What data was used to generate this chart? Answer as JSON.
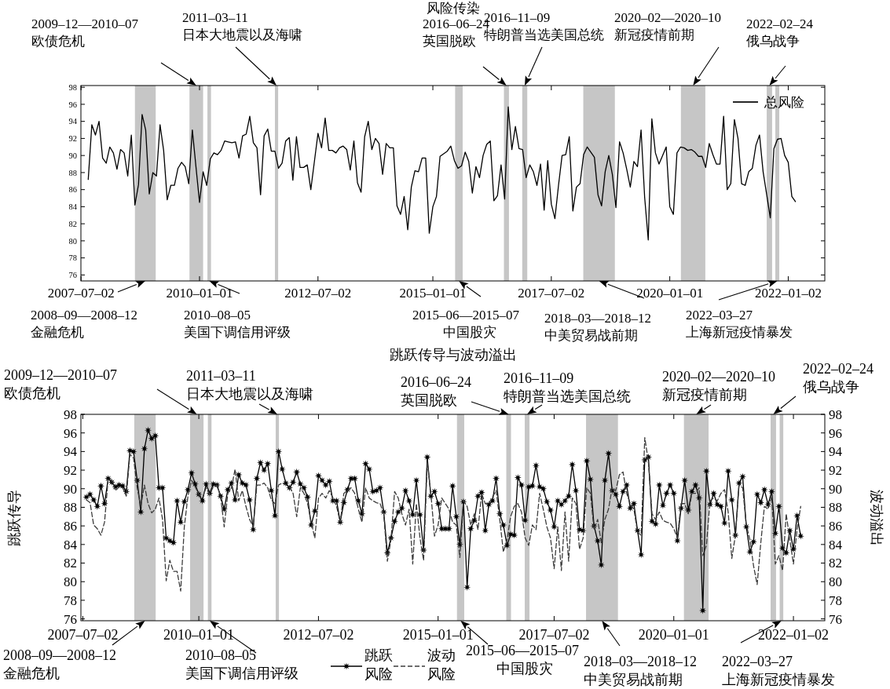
{
  "chart_data": [
    {
      "type": "line",
      "title": "风险传染",
      "legend": "top right",
      "ylim": [
        75.3,
        98.2
      ],
      "yticks": [
        76,
        78,
        80,
        82,
        84,
        86,
        88,
        90,
        92,
        94,
        96,
        98
      ],
      "categories": [
        "2007–07–02",
        null,
        null,
        null,
        null,
        null,
        null,
        null,
        null,
        null,
        null,
        null,
        null,
        null,
        null,
        null,
        null,
        null,
        null,
        null,
        null,
        null,
        null,
        null,
        null,
        null,
        null,
        null,
        null,
        null,
        null,
        null,
        null,
        "2010–01–01",
        null,
        null,
        null,
        null,
        null,
        null,
        null,
        null,
        null,
        null,
        null,
        null,
        null,
        null,
        null,
        null,
        null,
        null,
        null,
        null,
        null,
        null,
        null,
        null,
        null,
        null,
        null,
        null,
        null,
        null,
        null,
        null,
        "2012–07–02",
        null,
        null,
        null,
        null,
        null,
        null,
        null,
        null,
        null,
        null,
        null,
        null,
        null,
        null,
        null,
        null,
        null,
        null,
        null,
        null,
        null,
        null,
        null,
        null,
        null,
        null,
        null,
        null,
        null,
        null,
        null,
        "2015–01–01",
        null,
        null,
        null,
        null,
        null,
        null,
        null,
        null,
        null,
        null,
        null,
        null,
        null,
        null,
        null,
        null,
        null,
        null,
        null,
        null,
        null,
        null,
        null,
        null,
        null,
        null,
        null,
        null,
        null,
        null,
        null,
        null,
        "2017–07–02",
        null,
        null,
        null,
        null,
        null,
        null,
        null,
        null,
        null,
        null,
        null,
        null,
        null,
        null,
        null,
        null,
        null,
        null,
        null,
        null,
        null,
        null,
        null,
        null,
        null,
        null,
        null,
        null,
        null,
        null,
        null,
        null,
        "2020–01–01",
        null,
        null,
        null,
        null,
        null,
        null,
        null,
        null,
        null,
        null,
        null,
        null,
        null,
        null,
        null,
        null,
        null,
        null,
        null,
        null,
        null,
        null,
        null,
        null,
        null,
        null,
        null,
        null,
        null,
        null,
        null,
        null,
        "2022–01–02",
        null,
        null
      ],
      "series": [
        {
          "name": "总风险",
          "color": "#000000",
          "line_style": "solid",
          "values": [
            null,
            null,
            87.2,
            93.6,
            92.4,
            94.0,
            89.7,
            89.1,
            91.0,
            90.3,
            88.4,
            90.7,
            90.3,
            87.6,
            92.4,
            84.2,
            86.6,
            94.8,
            93.0,
            85.5,
            88.0,
            87.6,
            93.6,
            90.6,
            84.8,
            86.5,
            86.5,
            88.5,
            89.2,
            88.7,
            86.7,
            93.0,
            88.7,
            84.5,
            88.1,
            86.5,
            89.6,
            90.3,
            90.1,
            90.6,
            91.7,
            91.6,
            91.5,
            91.6,
            89.7,
            92.3,
            92.5,
            94.6,
            91.5,
            90.9,
            85.4,
            92.3,
            93.1,
            90.5,
            90.5,
            88.5,
            89.1,
            91.7,
            92.1,
            87.1,
            92.2,
            88.6,
            88.6,
            88.9,
            86.0,
            89.3,
            92.6,
            90.9,
            94.4,
            90.6,
            90.6,
            90.3,
            90.9,
            91.1,
            90.7,
            88.3,
            91.7,
            86.8,
            85.7,
            92.2,
            94.0,
            90.7,
            92.0,
            91.4,
            87.8,
            91.4,
            90.9,
            90.9,
            84.1,
            83.1,
            85.2,
            81.3,
            86.3,
            88.2,
            88.1,
            89.7,
            89.7,
            80.9,
            84.0,
            85.2,
            89.9,
            90.2,
            90.5,
            91.1,
            89.4,
            88.5,
            88.8,
            90.4,
            89.3,
            85.6,
            88.7,
            87.4,
            90.0,
            91.3,
            91.7,
            84.7,
            85.3,
            88.9,
            84.9,
            95.7,
            90.7,
            93.4,
            90.8,
            90.7,
            87.4,
            88.9,
            88.1,
            86.5,
            89.0,
            83.6,
            89.4,
            84.3,
            82.6,
            86.5,
            90.0,
            90.1,
            92.2,
            83.5,
            86.3,
            86.7,
            90.1,
            91.0,
            90.4,
            89.8,
            85.4,
            84.1,
            88.1,
            90.0,
            87.8,
            83.9,
            91.6,
            90.3,
            88.4,
            86.3,
            89.3,
            88.7,
            93.0,
            85.1,
            80.1,
            94.3,
            90.3,
            89.0,
            90.0,
            91.0,
            84.0,
            83.1,
            90.3,
            91.0,
            90.9,
            90.6,
            90.7,
            90.4,
            89.9,
            89.9,
            88.6,
            91.4,
            90.1,
            89.0,
            89.0,
            94.6,
            86.0,
            86.7,
            94.2,
            92.0,
            86.7,
            86.5,
            88.1,
            88.5,
            91.2,
            92.4,
            88.1,
            85.4,
            82.7,
            90.8,
            91.9,
            92.0,
            90.0,
            89.2,
            85.2,
            84.6
          ]
        }
      ],
      "annotations": [
        "2008–09—2008–12\n金融危机",
        "2009–12—2010–07\n欧债危机",
        "2010–08–05\n美国下调信用评级",
        "2011–03–11\n日本大地震以及海啸",
        "2015–06—2015–07\n中国股灾",
        "2016–06–24\n英国脱欧",
        "2016–11–09\n特朗普当选美国总统",
        "2018–03—2018–12\n中美贸易战前期",
        "2020–02—2020–10\n新冠疫情前期",
        "2022–02–24\n俄乌战争",
        "2022–03–27\n上海新冠疫情暴发"
      ]
    },
    {
      "type": "line",
      "title": "跳跃传导与波动溢出",
      "ylabel": "跳跃传导",
      "y2label": "波动溢出",
      "legend": "bottom",
      "ylim": [
        75.8,
        98
      ],
      "y2lim": [
        75.8,
        98
      ],
      "yticks": [
        76,
        78,
        80,
        82,
        84,
        86,
        88,
        90,
        92,
        94,
        96,
        98
      ],
      "y2ticks": [
        76,
        78,
        80,
        82,
        84,
        86,
        88,
        90,
        92,
        94,
        96,
        98
      ],
      "categories": [
        "2007–07–02",
        null,
        null,
        null,
        null,
        null,
        null,
        null,
        null,
        null,
        null,
        null,
        null,
        null,
        null,
        null,
        null,
        null,
        null,
        null,
        null,
        null,
        null,
        null,
        null,
        null,
        null,
        null,
        null,
        null,
        null,
        null,
        "2010–01–01",
        null,
        null,
        null,
        null,
        null,
        null,
        null,
        null,
        null,
        null,
        null,
        null,
        null,
        null,
        null,
        null,
        null,
        null,
        null,
        null,
        null,
        null,
        null,
        null,
        null,
        null,
        null,
        null,
        null,
        null,
        null,
        null,
        "2012–07–02",
        null,
        null,
        null,
        null,
        null,
        null,
        null,
        null,
        null,
        null,
        null,
        null,
        null,
        null,
        null,
        null,
        null,
        null,
        null,
        null,
        null,
        null,
        null,
        null,
        null,
        null,
        null,
        null,
        null,
        null,
        null,
        null,
        "2015–01–01",
        null,
        null,
        null,
        null,
        null,
        null,
        null,
        null,
        null,
        null,
        null,
        null,
        null,
        null,
        null,
        null,
        null,
        null,
        null,
        null,
        null,
        null,
        null,
        null,
        null,
        null,
        null,
        null,
        null,
        null,
        null,
        "2017–07–02",
        null,
        null,
        null,
        null,
        null,
        null,
        null,
        null,
        null,
        null,
        null,
        null,
        null,
        null,
        null,
        null,
        null,
        null,
        null,
        null,
        null,
        null,
        null,
        null,
        null,
        null,
        null,
        null,
        null,
        null,
        null,
        null,
        "2020–01–01",
        null,
        null,
        null,
        null,
        null,
        null,
        null,
        null,
        null,
        null,
        null,
        null,
        null,
        null,
        null,
        null,
        null,
        null,
        null,
        null,
        null,
        null,
        null,
        null,
        null,
        null,
        null,
        null,
        null,
        null,
        null,
        null,
        "2022–01–02",
        null,
        null
      ],
      "series": [
        {
          "name": "跳跃风险",
          "color": "#000000",
          "marker": "star",
          "line_style": "solid",
          "values": [
            null,
            89.1,
            89.4,
            88.8,
            88.1,
            90.3,
            88.4,
            91.1,
            90.7,
            90.2,
            90.4,
            90.3,
            89.7,
            94.1,
            94.0,
            90.9,
            87.5,
            94.3,
            96.3,
            95.4,
            95.7,
            90.1,
            90.1,
            84.7,
            84.4,
            84.2,
            88.7,
            86.4,
            88.6,
            89.9,
            91.7,
            90.5,
            89.4,
            88.7,
            90.5,
            89.5,
            90.5,
            90.4,
            89.2,
            87.8,
            89.9,
            90.6,
            88.8,
            91.5,
            90.6,
            90.4,
            88.8,
            85.6,
            91.1,
            92.8,
            92.0,
            92.7,
            89.8,
            87.1,
            94.0,
            92.1,
            90.6,
            90.1,
            90.7,
            91.8,
            90.5,
            90.1,
            89.1,
            86.1,
            87.6,
            91.4,
            90.9,
            90.4,
            90.8,
            88.7,
            88.7,
            86.4,
            88.5,
            89.9,
            91.1,
            91.1,
            88.7,
            87.3,
            92.7,
            92.1,
            89.7,
            89.8,
            90.1,
            87.5,
            83.1,
            84.7,
            86.5,
            87.5,
            87.9,
            89.8,
            88.7,
            87.2,
            90.9,
            87.2,
            83.4,
            93.4,
            89.2,
            89.7,
            88.4,
            85.7,
            85.7,
            85.7,
            90.3,
            87.0,
            84.0,
            88.6,
            79.4,
            85.7,
            86.6,
            89.2,
            89.6,
            85.5,
            88.3,
            88.7,
            91.1,
            87.3,
            86.1,
            83.9,
            85.1,
            85.0,
            91.2,
            90.4,
            86.6,
            90.2,
            90.3,
            92.5,
            90.2,
            90.0,
            88.6,
            87.7,
            85.9,
            88.7,
            88.3,
            88.7,
            89.2,
            92.6,
            89.8,
            85.6,
            85.5,
            93.0,
            91.0,
            86.0,
            84.4,
            81.8,
            90.9,
            93.8,
            89.8,
            89.4,
            88.1,
            89.7,
            90.4,
            87.9,
            88.4,
            85.5,
            82.9,
            93.1,
            93.4,
            86.5,
            86.2,
            90.4,
            88.2,
            89.5,
            90.4,
            89.5,
            84.4,
            87.9,
            90.9,
            87.7,
            89.7,
            90.4,
            89.0,
            76.9,
            91.9,
            88.3,
            89.5,
            88.3,
            88.1,
            86.3,
            91.9,
            88.8,
            85.0,
            90.6,
            91.3,
            85.9,
            83.2,
            84.3,
            89.4,
            88.5,
            89.9,
            88.3,
            89.7,
            85.2,
            88.1,
            83.6,
            83.1,
            85.5,
            83.5,
            87.1,
            84.9
          ]
        },
        {
          "name": "波动风险",
          "color": "#3c3c3c",
          "line_style": "dashed",
          "values": [
            null,
            88.8,
            88.5,
            86.1,
            85.7,
            85.0,
            86.4,
            91.1,
            90.9,
            89.8,
            90.2,
            90.1,
            89.2,
            93.7,
            93.3,
            90.1,
            88.1,
            90.4,
            88.4,
            87.4,
            87.8,
            89.0,
            86.7,
            80.1,
            82.3,
            81.1,
            81.1,
            79.0,
            85.9,
            89.2,
            90.9,
            90.2,
            89.4,
            89.0,
            90.1,
            89.4,
            90.2,
            90.4,
            89.2,
            85.9,
            89.5,
            90.1,
            92.1,
            88.7,
            89.8,
            88.1,
            86.7,
            85.9,
            90.4,
            90.4,
            90.6,
            90.1,
            88.8,
            88.4,
            90.4,
            90.6,
            90.4,
            90.2,
            89.5,
            87.0,
            90.1,
            89.5,
            88.4,
            86.4,
            84.7,
            89.0,
            89.5,
            89.0,
            89.8,
            89.0,
            88.1,
            86.4,
            89.5,
            89.8,
            90.1,
            89.5,
            87.8,
            86.4,
            90.1,
            89.0,
            88.7,
            88.5,
            88.4,
            87.3,
            82.2,
            84.5,
            89.7,
            89.0,
            87.3,
            86.1,
            87.8,
            81.9,
            88.4,
            84.7,
            82.3,
            92.9,
            89.5,
            84.9,
            86.1,
            89.0,
            88.4,
            87.8,
            86.4,
            86.1,
            82.6,
            88.7,
            88.1,
            86.1,
            87.3,
            85.6,
            89.5,
            88.4,
            88.4,
            89.1,
            89.8,
            86.7,
            83.2,
            84.5,
            87.0,
            88.1,
            88.4,
            87.5,
            84.7,
            83.9,
            86.1,
            85.6,
            89.5,
            87.8,
            85.9,
            84.7,
            81.4,
            85.9,
            81.2,
            87.5,
            82.2,
            89.0,
            88.4,
            83.5,
            84.7,
            90.1,
            89.5,
            85.6,
            86.7,
            84.2,
            86.7,
            87.8,
            90.1,
            89.8,
            91.5,
            91.8,
            89.5,
            88.4,
            87.8,
            85.3,
            85.0,
            95.5,
            92.9,
            87.3,
            86.7,
            87.5,
            86.6,
            86.4,
            86.3,
            85.7,
            84.7,
            88.4,
            88.4,
            87.3,
            89.5,
            89.5,
            90.1,
            82.8,
            83.9,
            88.7,
            89.0,
            88.7,
            89.5,
            89.9,
            87.5,
            82.5,
            85.0,
            90.4,
            90.1,
            86.1,
            84.5,
            81.7,
            79.7,
            84.2,
            88.1,
            87.8,
            89.2,
            81.9,
            82.8,
            81.2,
            87.3,
            84.5,
            81.9,
            85.6,
            88.1
          ]
        }
      ],
      "annotations": [
        "2008–09—2008–12\n金融危机",
        "2009–12—2010–07\n欧债危机",
        "2010–08–05\n美国下调信用评级",
        "2011–03–11\n日本大地震以及海啸",
        "2015–06—2015–07\n中国股灾",
        "2016–06–24\n英国脱欧",
        "2016–11–09\n特朗普当选美国总统",
        "2018–03—2018–12\n中美贸易战前期",
        "2020–02—2020–10\n新冠疫情前期",
        "2022–02–24\n俄乌战争",
        "2022–03–27\n上海新冠疫情暴发"
      ]
    }
  ]
}
